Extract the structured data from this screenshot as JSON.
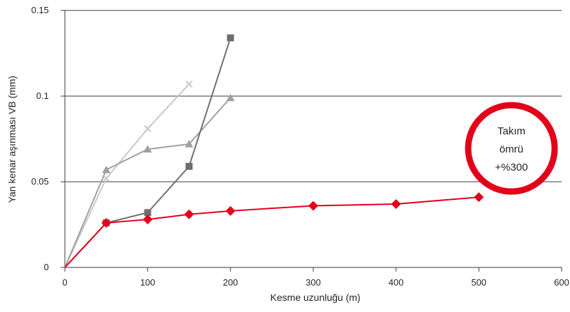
{
  "chart_data": {
    "type": "line",
    "xlabel": "Kesme uzunluğu (m)",
    "ylabel": "Yan kenar aşınması VB (mm)",
    "xlim": [
      0,
      600
    ],
    "ylim": [
      0,
      0.15
    ],
    "x_ticks": [
      "0",
      "100",
      "200",
      "300",
      "400",
      "500",
      "600"
    ],
    "y_ticks": [
      "0",
      "0.05",
      "0.1",
      "0.15"
    ],
    "grid": "horizontal",
    "legend": "none",
    "series": [
      {
        "marker": "x",
        "color": "#c8c8c8",
        "points": [
          [
            0,
            0
          ],
          [
            50,
            0.052
          ],
          [
            100,
            0.081
          ],
          [
            150,
            0.107
          ]
        ]
      },
      {
        "marker": "triangle",
        "color": "#a0a0a0",
        "points": [
          [
            0,
            0
          ],
          [
            50,
            0.057
          ],
          [
            100,
            0.069
          ],
          [
            150,
            0.072
          ],
          [
            200,
            0.099
          ]
        ]
      },
      {
        "marker": "square",
        "color": "#6e6e6e",
        "points": [
          [
            0,
            0
          ],
          [
            50,
            0.026
          ],
          [
            100,
            0.032
          ],
          [
            150,
            0.059
          ],
          [
            200,
            0.134
          ]
        ]
      },
      {
        "marker": "diamond",
        "color": "#e2001a",
        "points": [
          [
            0,
            0
          ],
          [
            50,
            0.026
          ],
          [
            100,
            0.028
          ],
          [
            150,
            0.031
          ],
          [
            200,
            0.033
          ],
          [
            300,
            0.036
          ],
          [
            400,
            0.037
          ],
          [
            500,
            0.041
          ]
        ]
      }
    ],
    "callout": {
      "lines": [
        "Takım",
        "ömrü",
        "+%300"
      ],
      "ring_color": "#e2001a"
    }
  }
}
